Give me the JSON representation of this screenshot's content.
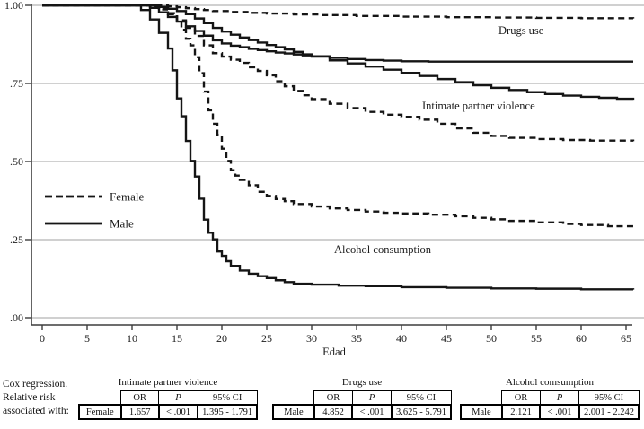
{
  "chart_data": {
    "type": "line",
    "subtype": "kaplan-meier-step-survival",
    "title": "",
    "xlabel": "Edad",
    "ylabel": "",
    "xlim": [
      0,
      65
    ],
    "ylim": [
      0,
      1
    ],
    "grid": true,
    "x_ticks": [
      0,
      5,
      10,
      15,
      20,
      25,
      30,
      35,
      40,
      45,
      50,
      55,
      60,
      65
    ],
    "y_ticks": [
      {
        "label": "1.00",
        "value": 1.0
      },
      {
        "label": ".75",
        "value": 0.75
      },
      {
        "label": ".50",
        "value": 0.5
      },
      {
        "label": ".25",
        "value": 0.25
      },
      {
        "label": ".00",
        "value": 0.0
      }
    ],
    "legend": {
      "position": "middle-left",
      "items": [
        {
          "label": "Female",
          "style": "dashed"
        },
        {
          "label": "Male",
          "style": "solid"
        }
      ]
    },
    "annotations": [
      {
        "text": "Drugs use",
        "x": 50.8,
        "y": 0.908
      },
      {
        "text": "Intimate partner violence",
        "x": 42.3,
        "y": 0.667
      },
      {
        "text": "Alcohol consumption",
        "x": 32.5,
        "y": 0.207
      }
    ],
    "colors": {
      "curve": "#151515",
      "grid": "#b5b5b5",
      "axis": "#3d3d3d",
      "text": "#1a1a1a"
    },
    "series": [
      {
        "id": "drugs-use-female",
        "name": "Drugs use - Female",
        "style": "dashed",
        "points": [
          [
            0,
            1
          ],
          [
            13,
            1
          ],
          [
            14,
            0.997
          ],
          [
            15,
            0.994
          ],
          [
            16,
            0.991
          ],
          [
            17,
            0.988
          ],
          [
            18,
            0.985
          ],
          [
            19,
            0.982
          ],
          [
            21,
            0.979
          ],
          [
            23,
            0.976
          ],
          [
            25,
            0.974
          ],
          [
            28,
            0.971
          ],
          [
            31,
            0.969
          ],
          [
            35,
            0.966
          ],
          [
            40,
            0.964
          ],
          [
            45,
            0.962
          ],
          [
            50,
            0.961
          ],
          [
            55,
            0.96
          ],
          [
            60,
            0.959
          ],
          [
            65.8,
            0.958
          ]
        ]
      },
      {
        "id": "drugs-use-male",
        "name": "Drugs use - Male",
        "style": "solid",
        "points": [
          [
            0,
            1
          ],
          [
            11,
            1
          ],
          [
            12,
            0.992
          ],
          [
            13,
            0.978
          ],
          [
            14,
            0.963
          ],
          [
            15,
            0.948
          ],
          [
            16,
            0.933
          ],
          [
            17,
            0.918
          ],
          [
            18,
            0.903
          ],
          [
            19,
            0.888
          ],
          [
            20,
            0.878
          ],
          [
            21,
            0.871
          ],
          [
            22,
            0.866
          ],
          [
            23,
            0.861
          ],
          [
            24,
            0.857
          ],
          [
            25,
            0.853
          ],
          [
            26,
            0.849
          ],
          [
            27,
            0.846
          ],
          [
            28,
            0.843
          ],
          [
            29,
            0.84
          ],
          [
            30,
            0.837
          ],
          [
            32,
            0.832
          ],
          [
            34,
            0.828
          ],
          [
            36,
            0.825
          ],
          [
            38,
            0.823
          ],
          [
            40,
            0.821
          ],
          [
            43,
            0.82
          ],
          [
            65.8,
            0.82
          ]
        ]
      },
      {
        "id": "intimate-partner-violence-male",
        "name": "Intimate partner violence - Male",
        "style": "solid",
        "points": [
          [
            0,
            1
          ],
          [
            12,
            1
          ],
          [
            13,
            0.995
          ],
          [
            14,
            0.989
          ],
          [
            15,
            0.982
          ],
          [
            16,
            0.972
          ],
          [
            17,
            0.958
          ],
          [
            18,
            0.943
          ],
          [
            19,
            0.928
          ],
          [
            20,
            0.916
          ],
          [
            21,
            0.906
          ],
          [
            22,
            0.897
          ],
          [
            23,
            0.889
          ],
          [
            24,
            0.881
          ],
          [
            25,
            0.873
          ],
          [
            26,
            0.866
          ],
          [
            27,
            0.859
          ],
          [
            28,
            0.851
          ],
          [
            29,
            0.843
          ],
          [
            30,
            0.836
          ],
          [
            32,
            0.824
          ],
          [
            34,
            0.814
          ],
          [
            36,
            0.804
          ],
          [
            38,
            0.794
          ],
          [
            40,
            0.784
          ],
          [
            42,
            0.774
          ],
          [
            44,
            0.764
          ],
          [
            46,
            0.754
          ],
          [
            48,
            0.744
          ],
          [
            50,
            0.736
          ],
          [
            52,
            0.729
          ],
          [
            54,
            0.722
          ],
          [
            56,
            0.716
          ],
          [
            58,
            0.711
          ],
          [
            60,
            0.707
          ],
          [
            62,
            0.704
          ],
          [
            64,
            0.701
          ],
          [
            65.8,
            0.698
          ]
        ]
      },
      {
        "id": "intimate-partner-violence-female",
        "name": "Intimate partner violence - Female",
        "style": "dashed",
        "points": [
          [
            0,
            1
          ],
          [
            11,
            1
          ],
          [
            12,
            0.996
          ],
          [
            13,
            0.987
          ],
          [
            14,
            0.972
          ],
          [
            15,
            0.952
          ],
          [
            16,
            0.928
          ],
          [
            17,
            0.902
          ],
          [
            18,
            0.872
          ],
          [
            19,
            0.847
          ],
          [
            20,
            0.836
          ],
          [
            21,
            0.826
          ],
          [
            22,
            0.816
          ],
          [
            23,
            0.802
          ],
          [
            24,
            0.79
          ],
          [
            25,
            0.776
          ],
          [
            26,
            0.757
          ],
          [
            27,
            0.741
          ],
          [
            28,
            0.726
          ],
          [
            29,
            0.712
          ],
          [
            30,
            0.7
          ],
          [
            32,
            0.685
          ],
          [
            34,
            0.671
          ],
          [
            36,
            0.659
          ],
          [
            38,
            0.65
          ],
          [
            40,
            0.643
          ],
          [
            42,
            0.634
          ],
          [
            44,
            0.621
          ],
          [
            46,
            0.606
          ],
          [
            48,
            0.592
          ],
          [
            50,
            0.582
          ],
          [
            52,
            0.576
          ],
          [
            55,
            0.572
          ],
          [
            58,
            0.569
          ],
          [
            61,
            0.567
          ],
          [
            65.8,
            0.565
          ]
        ]
      },
      {
        "id": "alcohol-consumption-female",
        "name": "Alcohol consumption - Female",
        "style": "dashed",
        "points": [
          [
            0,
            1
          ],
          [
            12,
            1
          ],
          [
            13,
            0.99
          ],
          [
            14,
            0.975
          ],
          [
            15,
            0.947
          ],
          [
            15.5,
            0.922
          ],
          [
            16,
            0.893
          ],
          [
            16.5,
            0.872
          ],
          [
            17,
            0.834
          ],
          [
            17.5,
            0.783
          ],
          [
            18,
            0.724
          ],
          [
            18.5,
            0.664
          ],
          [
            19,
            0.621
          ],
          [
            19.5,
            0.586
          ],
          [
            20,
            0.541
          ],
          [
            20.5,
            0.502
          ],
          [
            21,
            0.472
          ],
          [
            21.5,
            0.455
          ],
          [
            22,
            0.441
          ],
          [
            23,
            0.424
          ],
          [
            24,
            0.403
          ],
          [
            25,
            0.39
          ],
          [
            26,
            0.38
          ],
          [
            27,
            0.373
          ],
          [
            28,
            0.364
          ],
          [
            30,
            0.356
          ],
          [
            32,
            0.35
          ],
          [
            34,
            0.345
          ],
          [
            36,
            0.34
          ],
          [
            38,
            0.336
          ],
          [
            40,
            0.334
          ],
          [
            43,
            0.33
          ],
          [
            46,
            0.325
          ],
          [
            48,
            0.32
          ],
          [
            50,
            0.315
          ],
          [
            52,
            0.31
          ],
          [
            55,
            0.305
          ],
          [
            58,
            0.3
          ],
          [
            60,
            0.297
          ],
          [
            63,
            0.293
          ],
          [
            65.8,
            0.29
          ]
        ]
      },
      {
        "id": "alcohol-consumption-male",
        "name": "Alcohol consumption - Male",
        "style": "solid",
        "points": [
          [
            0,
            1
          ],
          [
            10,
            1
          ],
          [
            11,
            0.985
          ],
          [
            12,
            0.955
          ],
          [
            13,
            0.912
          ],
          [
            14,
            0.862
          ],
          [
            14.5,
            0.792
          ],
          [
            15,
            0.702
          ],
          [
            15.5,
            0.645
          ],
          [
            16,
            0.566
          ],
          [
            16.5,
            0.502
          ],
          [
            17,
            0.452
          ],
          [
            17.5,
            0.381
          ],
          [
            18,
            0.314
          ],
          [
            18.5,
            0.272
          ],
          [
            19,
            0.251
          ],
          [
            19.5,
            0.212
          ],
          [
            20,
            0.198
          ],
          [
            20.5,
            0.181
          ],
          [
            21,
            0.166
          ],
          [
            22,
            0.151
          ],
          [
            23,
            0.141
          ],
          [
            24,
            0.133
          ],
          [
            25,
            0.127
          ],
          [
            26,
            0.12
          ],
          [
            27,
            0.114
          ],
          [
            28,
            0.109
          ],
          [
            30,
            0.106
          ],
          [
            33,
            0.103
          ],
          [
            36,
            0.101
          ],
          [
            40,
            0.098
          ],
          [
            45,
            0.096
          ],
          [
            50,
            0.094
          ],
          [
            55,
            0.093
          ],
          [
            60,
            0.091
          ],
          [
            65.8,
            0.09
          ]
        ]
      }
    ]
  },
  "table_section": {
    "caption_lines": [
      "Cox regression.",
      "Relative risk",
      "associated with:"
    ],
    "col_headers": [
      "OR",
      "P",
      "95% CI"
    ],
    "tables": [
      {
        "title": "Intimate partner violence",
        "group": "Female",
        "or": "1.657",
        "p": "< .001",
        "ci": "1.395 - 1.791"
      },
      {
        "title": "Drugs use",
        "group": "Male",
        "or": "4.852",
        "p": "< .001",
        "ci": "3.625 - 5.791"
      },
      {
        "title": "Alcohol comsumption",
        "group": "Male",
        "or": "2.121",
        "p": "< .001",
        "ci": "2.001 - 2.242"
      }
    ]
  }
}
